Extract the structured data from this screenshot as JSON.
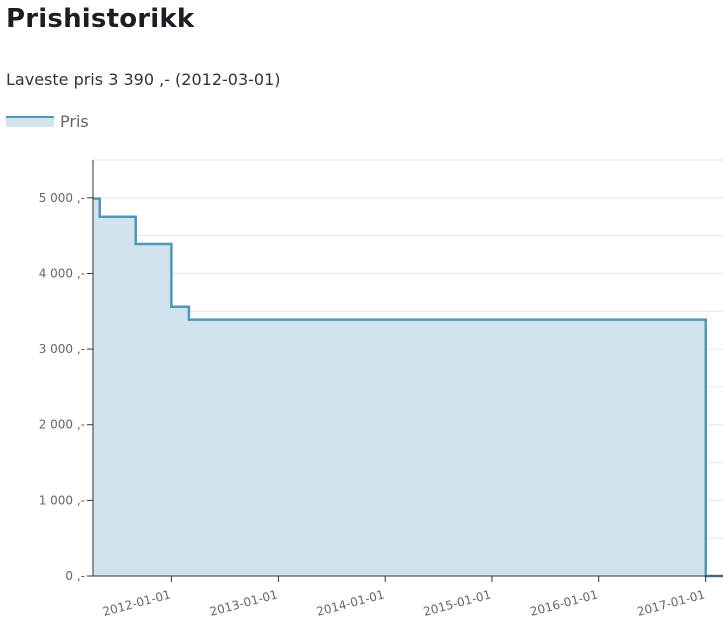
{
  "header": {
    "title": "Prishistorikk",
    "lowest_price_label": "Laveste pris",
    "lowest_price_value": "3 390 ,-",
    "lowest_price_date": "(2012-03-01)"
  },
  "colors": {
    "line": "#4f97b5",
    "fill": "#d3e3ed",
    "grid": "#e6e6e6",
    "axis": "#333333"
  },
  "chart_data": {
    "type": "area",
    "step": true,
    "legend": {
      "entries": [
        "Pris"
      ],
      "placement": "top-left"
    },
    "ylim": [
      0,
      5500
    ],
    "yticks": [
      0,
      1000,
      2000,
      3000,
      4000,
      5000
    ],
    "ytick_labels": [
      "0 ,-",
      "1 000 ,-",
      "2 000 ,-",
      "3 000 ,-",
      "4 000 ,-",
      "5 000 ,-"
    ],
    "xlim": [
      "2011-04-08",
      "2017-03-01"
    ],
    "xticks": [
      "2012-01-01",
      "2013-01-01",
      "2014-01-01",
      "2015-01-01",
      "2016-01-01",
      "2017-01-01"
    ],
    "xtick_labels": [
      "2012-01-01",
      "2013-01-01",
      "2014-01-01",
      "2015-01-01",
      "2016-01-01",
      "2017-01-01"
    ],
    "grid": true,
    "series": [
      {
        "name": "Pris",
        "points": [
          {
            "x": "2011-04-08",
            "y": 4990
          },
          {
            "x": "2011-05-01",
            "y": 4750
          },
          {
            "x": "2011-09-01",
            "y": 4390
          },
          {
            "x": "2012-01-01",
            "y": 3560
          },
          {
            "x": "2012-03-01",
            "y": 3390
          },
          {
            "x": "2017-01-01",
            "y": 0
          }
        ]
      }
    ]
  }
}
